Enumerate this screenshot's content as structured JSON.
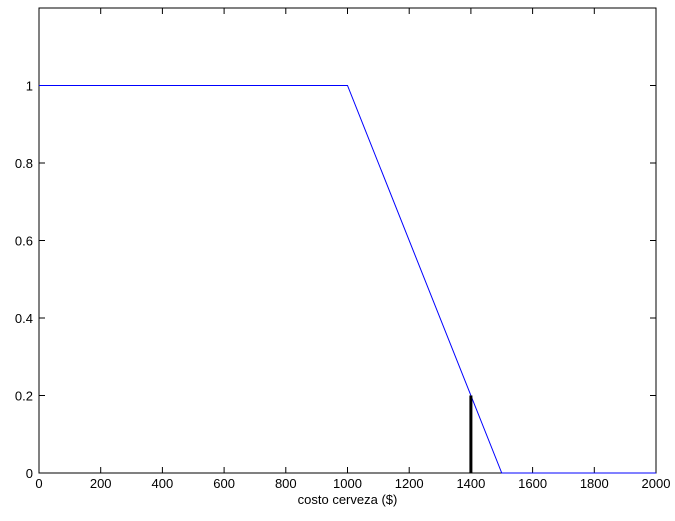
{
  "chart_data": {
    "type": "line",
    "title": "",
    "xlabel": "costo cerveza ($)",
    "ylabel": "",
    "xlim": [
      0,
      2000
    ],
    "ylim": [
      0,
      1.2
    ],
    "grid": false,
    "x_ticks": [
      0,
      200,
      400,
      600,
      800,
      1000,
      1200,
      1400,
      1600,
      1800,
      2000
    ],
    "x_tick_labels": [
      "0",
      "200",
      "400",
      "600",
      "800",
      "1000",
      "1200",
      "1400",
      "1600",
      "1800",
      "2000"
    ],
    "y_ticks": [
      0,
      0.2,
      0.4,
      0.6,
      0.8,
      1
    ],
    "y_tick_labels": [
      "0",
      "0.2",
      "0.4",
      "0.6",
      "0.8",
      "1"
    ],
    "series": [
      {
        "x": [
          0,
          1000,
          1500,
          2000
        ],
        "y": [
          1,
          1,
          0,
          0
        ],
        "color": "#0000ff"
      }
    ],
    "markers": [
      {
        "type": "vertical-line",
        "x": 1400,
        "y_from": 0,
        "y_to": 0.2,
        "color": "#000000"
      }
    ]
  }
}
